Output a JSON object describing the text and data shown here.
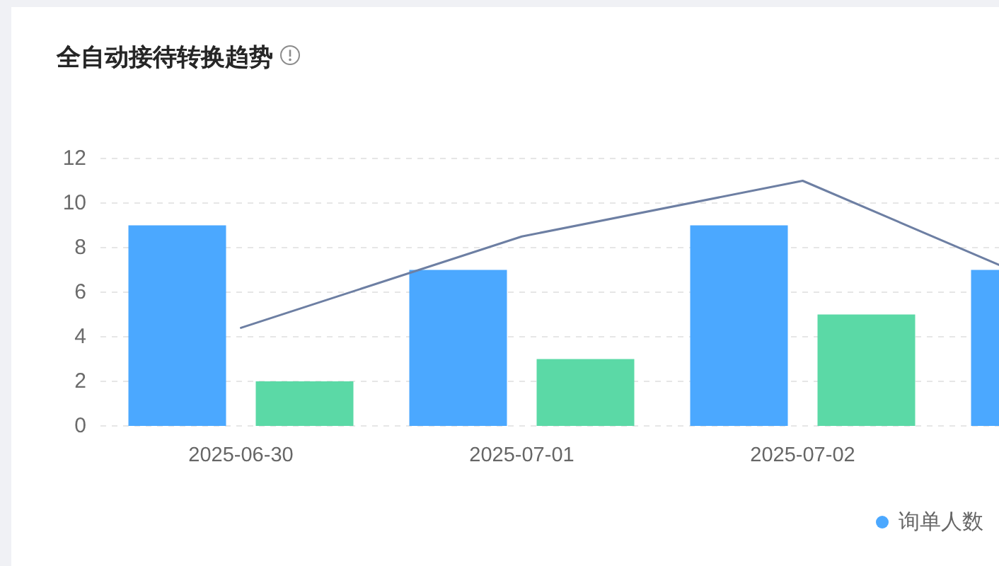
{
  "chart_data": {
    "type": "bar",
    "title": "全自动接待转换趋势",
    "categories": [
      "2025-06-30",
      "2025-07-01",
      "2025-07-02",
      null
    ],
    "series": [
      {
        "name": "询单人数",
        "color": "#4ba8ff",
        "values": [
          9,
          7,
          9,
          7
        ]
      },
      {
        "color": "#5bd9a6",
        "values": [
          2,
          3,
          5,
          null
        ]
      },
      {
        "type": "line",
        "color": "#6d7fa3",
        "values": [
          4.4,
          8.5,
          11.0,
          5.6
        ]
      }
    ],
    "ylim": [
      0,
      12
    ],
    "yticks": [
      0,
      2,
      4,
      6,
      8,
      10,
      12
    ],
    "grid": "y",
    "legend": "bottom right"
  }
}
